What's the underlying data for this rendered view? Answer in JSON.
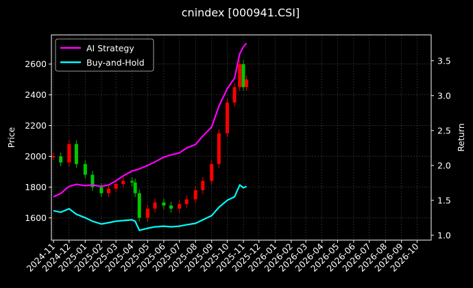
{
  "chart_data": {
    "type": "line",
    "title": "cnindex [000941.CSI]",
    "ylabel": "Price",
    "y2label": "Return",
    "legend_position": "top-left",
    "grid": true,
    "colors": {
      "background": "#000000",
      "ai_strategy": "#ff00ff",
      "buy_and_hold": "#00ffff",
      "candle_up": "#ff0000",
      "candle_down": "#00c800",
      "grid": "#555555"
    },
    "x_ticks": [
      "2024-11",
      "2024-12",
      "2025-01",
      "2025-02",
      "2025-03",
      "2025-04",
      "2025-05",
      "2025-06",
      "2025-07",
      "2025-08",
      "2025-09",
      "2025-10",
      "2025-11",
      "2025-12",
      "2026-01",
      "2026-02",
      "2026-03",
      "2026-04",
      "2026-05",
      "2026-06",
      "2026-07",
      "2026-08",
      "2026-09",
      "2026-10"
    ],
    "y_left": {
      "ticks": [
        1600,
        1800,
        2000,
        2200,
        2400,
        2600
      ],
      "range": [
        1455,
        2790
      ]
    },
    "y_right": {
      "ticks": [
        "1.0",
        "1.5",
        "2.0",
        "2.5",
        "3.0",
        "3.5"
      ],
      "range": [
        0.93,
        3.87
      ]
    },
    "x_range": [
      "2024-10-28",
      "2026-10-28"
    ],
    "series": [
      {
        "name": "AI Strategy",
        "axis": "right",
        "x": [
          "2024-11-01",
          "2024-11-15",
          "2024-12-01",
          "2024-12-15",
          "2025-01-01",
          "2025-01-15",
          "2025-02-01",
          "2025-02-15",
          "2025-03-01",
          "2025-03-15",
          "2025-04-01",
          "2025-04-15",
          "2025-05-01",
          "2025-05-15",
          "2025-06-01",
          "2025-06-15",
          "2025-07-01",
          "2025-07-15",
          "2025-08-01",
          "2025-08-15",
          "2025-09-01",
          "2025-09-15",
          "2025-10-01",
          "2025-10-15",
          "2025-10-25",
          "2025-11-01",
          "2025-11-07"
        ],
        "values": [
          1.55,
          1.6,
          1.7,
          1.73,
          1.71,
          1.72,
          1.7,
          1.72,
          1.78,
          1.85,
          1.92,
          1.95,
          2.0,
          2.05,
          2.12,
          2.15,
          2.18,
          2.25,
          2.3,
          2.42,
          2.55,
          2.85,
          3.1,
          3.25,
          3.6,
          3.7,
          3.75
        ]
      },
      {
        "name": "Buy-and-Hold",
        "axis": "right",
        "x": [
          "2024-11-01",
          "2024-11-15",
          "2024-12-01",
          "2024-12-15",
          "2025-01-01",
          "2025-01-15",
          "2025-02-01",
          "2025-02-15",
          "2025-03-01",
          "2025-03-15",
          "2025-04-01",
          "2025-04-07",
          "2025-04-15",
          "2025-05-01",
          "2025-05-15",
          "2025-06-01",
          "2025-06-15",
          "2025-07-01",
          "2025-07-15",
          "2025-08-01",
          "2025-08-15",
          "2025-09-01",
          "2025-09-15",
          "2025-10-01",
          "2025-10-15",
          "2025-10-25",
          "2025-11-01",
          "2025-11-07"
        ],
        "values": [
          1.35,
          1.33,
          1.38,
          1.3,
          1.25,
          1.2,
          1.16,
          1.18,
          1.2,
          1.21,
          1.22,
          1.2,
          1.07,
          1.1,
          1.12,
          1.13,
          1.12,
          1.13,
          1.15,
          1.17,
          1.22,
          1.28,
          1.4,
          1.5,
          1.55,
          1.72,
          1.68,
          1.7
        ]
      },
      {
        "name": "Price",
        "axis": "left",
        "render": "candles",
        "x": [
          "2024-11-01",
          "2024-11-15",
          "2024-12-01",
          "2024-12-15",
          "2025-01-01",
          "2025-01-15",
          "2025-02-01",
          "2025-02-15",
          "2025-03-01",
          "2025-03-15",
          "2025-04-01",
          "2025-04-07",
          "2025-04-15",
          "2025-05-01",
          "2025-05-15",
          "2025-06-01",
          "2025-06-15",
          "2025-07-01",
          "2025-07-15",
          "2025-08-01",
          "2025-08-15",
          "2025-09-01",
          "2025-09-15",
          "2025-10-01",
          "2025-10-15",
          "2025-10-25",
          "2025-11-01",
          "2025-11-07"
        ],
        "values": [
          2000,
          1960,
          2080,
          1950,
          1880,
          1800,
          1760,
          1790,
          1820,
          1840,
          1830,
          1760,
          1600,
          1660,
          1700,
          1680,
          1660,
          1690,
          1720,
          1780,
          1840,
          1950,
          2150,
          2350,
          2450,
          2600,
          2450,
          2500
        ]
      }
    ]
  }
}
